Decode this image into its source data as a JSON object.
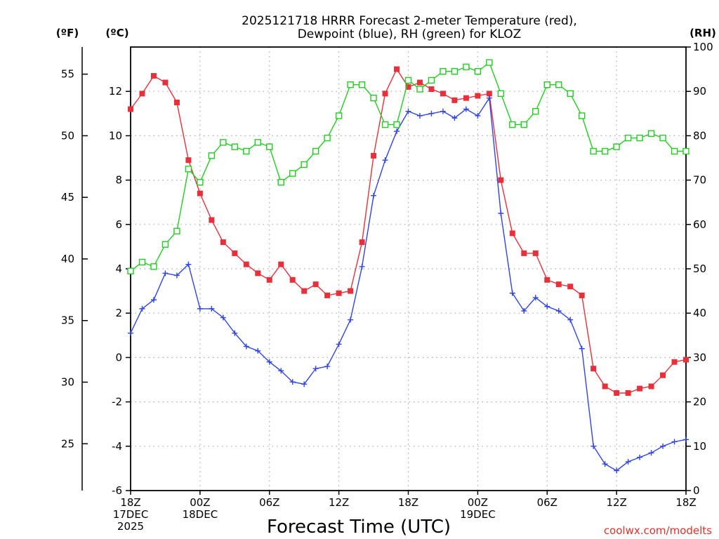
{
  "chart_data": {
    "type": "line",
    "title": [
      "2025121718 HRRR Forecast 2-meter Temperature (red),",
      "Dewpoint (blue), RH (green) for KLOZ"
    ],
    "xlabel": "Forecast Time (UTC)",
    "credit": "coolwx.com/modelts",
    "units": {
      "f": "(ºF)",
      "c": "(ºC)",
      "rh": "(RH)"
    },
    "x": [
      0,
      1,
      2,
      3,
      4,
      5,
      6,
      7,
      8,
      9,
      10,
      11,
      12,
      13,
      14,
      15,
      16,
      17,
      18,
      19,
      20,
      21,
      22,
      23,
      24,
      25,
      26,
      27,
      28,
      29,
      30,
      31,
      32,
      33,
      34,
      35,
      36,
      37,
      38,
      39,
      40,
      41,
      42,
      43,
      44,
      45,
      46,
      47,
      48
    ],
    "xlim": [
      0,
      48
    ],
    "ylim_c": [
      -6,
      14
    ],
    "ylim_rh": [
      0,
      100
    ],
    "f_ticks": [
      25,
      30,
      35,
      40,
      45,
      50,
      55
    ],
    "c_ticks": [
      -6,
      -4,
      -2,
      0,
      2,
      4,
      6,
      8,
      10,
      12
    ],
    "rh_ticks": [
      0,
      10,
      20,
      30,
      40,
      50,
      60,
      70,
      80,
      90,
      100
    ],
    "x_ticks": [
      {
        "x": 0,
        "lines": [
          "18Z",
          "17DEC",
          "2025"
        ]
      },
      {
        "x": 6,
        "lines": [
          "00Z",
          "18DEC"
        ]
      },
      {
        "x": 12,
        "lines": [
          "06Z"
        ]
      },
      {
        "x": 18,
        "lines": [
          "12Z"
        ]
      },
      {
        "x": 24,
        "lines": [
          "18Z"
        ]
      },
      {
        "x": 30,
        "lines": [
          "00Z",
          "19DEC"
        ]
      },
      {
        "x": 36,
        "lines": [
          "06Z"
        ]
      },
      {
        "x": 42,
        "lines": [
          "12Z"
        ]
      },
      {
        "x": 48,
        "lines": [
          "18Z"
        ]
      }
    ],
    "series": [
      {
        "name": "Temperature",
        "units": "C",
        "axis": "c",
        "color": "#e8303a",
        "marker": "filled-square",
        "values": [
          11.2,
          11.9,
          12.7,
          12.4,
          11.5,
          8.9,
          7.4,
          6.2,
          5.2,
          4.7,
          4.2,
          3.8,
          3.5,
          4.2,
          3.5,
          3.0,
          3.3,
          2.8,
          2.9,
          3.0,
          5.2,
          9.1,
          11.9,
          13.0,
          12.2,
          12.4,
          12.1,
          11.9,
          11.6,
          11.7,
          11.8,
          11.9,
          8.0,
          5.6,
          4.7,
          4.7,
          3.5,
          3.3,
          3.2,
          2.8,
          -0.5,
          -1.3,
          -1.6,
          -1.6,
          -1.4,
          -1.3,
          -0.8,
          -0.2,
          -0.1
        ]
      },
      {
        "name": "Dewpoint",
        "units": "C",
        "axis": "c",
        "color": "#2f45e6",
        "marker": "plus",
        "values": [
          1.1,
          2.2,
          2.6,
          3.8,
          3.7,
          4.2,
          2.2,
          2.2,
          1.8,
          1.1,
          0.5,
          0.3,
          -0.2,
          -0.6,
          -1.1,
          -1.2,
          -0.5,
          -0.4,
          0.6,
          1.7,
          4.1,
          7.3,
          8.9,
          10.2,
          11.1,
          10.9,
          11.0,
          11.1,
          10.8,
          11.2,
          10.9,
          11.7,
          6.5,
          2.9,
          2.1,
          2.7,
          2.3,
          2.1,
          1.7,
          0.4,
          -4.0,
          -4.8,
          -5.1,
          -4.7,
          -4.5,
          -4.3,
          -4.0,
          -3.8,
          -3.7
        ]
      },
      {
        "name": "Relative Humidity",
        "units": "%",
        "axis": "rh",
        "color": "#22cc22",
        "marker": "open-square",
        "values": [
          49.5,
          51.5,
          50.5,
          55.5,
          58.5,
          72.5,
          69.5,
          75.5,
          78.5,
          77.5,
          76.5,
          78.5,
          77.5,
          69.5,
          71.5,
          73.5,
          76.5,
          79.5,
          84.5,
          91.5,
          91.5,
          88.5,
          82.5,
          82.5,
          92.5,
          90.5,
          92.5,
          94.5,
          94.5,
          95.5,
          94.5,
          96.5,
          89.5,
          82.5,
          82.5,
          85.5,
          91.5,
          91.5,
          89.5,
          84.5,
          76.5,
          76.5,
          77.5,
          79.5,
          79.5,
          80.5,
          79.5,
          76.5,
          76.5
        ]
      }
    ]
  }
}
